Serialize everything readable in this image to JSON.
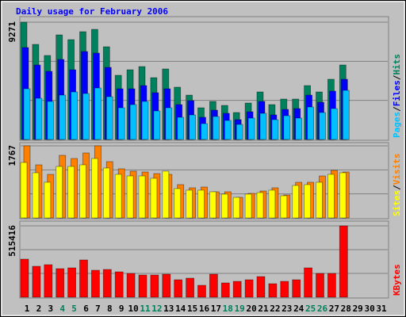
{
  "chart_data": [
    {
      "type": "bar",
      "title": "Daily usage for February 2006",
      "ylim": [
        0,
        9271
      ],
      "yticks": [
        9271
      ],
      "grid_divisions": 3,
      "series": [
        {
          "name": "Hits",
          "color": "#00805c",
          "values": [
            9271,
            7517,
            6640,
            8268,
            7893,
            8519,
            8707,
            7329,
            5074,
            5512,
            5763,
            4886,
            5575,
            4134,
            3508,
            2506,
            3007,
            2694,
            2130,
            2881,
            3758,
            2756,
            3195,
            3195,
            4260,
            3758,
            4761,
            5888,
            null,
            null,
            null
          ]
        },
        {
          "name": "Files",
          "color": "#0000ff",
          "values": [
            7266,
            5888,
            5387,
            6327,
            5512,
            6953,
            6828,
            5700,
            4009,
            4009,
            4260,
            3696,
            4009,
            2756,
            3069,
            1754,
            2318,
            2067,
            1566,
            2192,
            3007,
            1942,
            2380,
            2443,
            3508,
            2944,
            3821,
            4761,
            null,
            null,
            null
          ]
        },
        {
          "name": "Pages",
          "color": "#00c0ff",
          "values": [
            4009,
            3257,
            3007,
            3508,
            3758,
            3633,
            4072,
            3383,
            2506,
            2756,
            3007,
            2255,
            2506,
            1754,
            1942,
            1253,
            1817,
            1503,
            1190,
            1691,
            2067,
            1566,
            1879,
            1691,
            2568,
            2130,
            2443,
            3884,
            null,
            null,
            null
          ]
        }
      ]
    },
    {
      "type": "bar",
      "ylim": [
        0,
        1767
      ],
      "yticks": [
        1767
      ],
      "grid_divisions": 3,
      "series": [
        {
          "name": "Visits",
          "color": "#ff8000",
          "values": [
            1767,
            1301,
            1068,
            1534,
            1456,
            1592,
            1767,
            1379,
            1204,
            1146,
            1126,
            1087,
            1068,
            816,
            738,
            757,
            641,
            641,
            505,
            602,
            660,
            738,
            563,
            874,
            874,
            1029,
            1165,
            1126,
            null,
            null,
            null
          ]
        },
        {
          "name": "Sites",
          "color": "#ffff00",
          "values": [
            1359,
            1107,
            874,
            1262,
            1262,
            1301,
            1456,
            1223,
            1068,
            1029,
            1029,
            971,
            1146,
            719,
            680,
            680,
            641,
            583,
            505,
            583,
            621,
            680,
            544,
            796,
            816,
            874,
            1068,
            1107,
            null,
            null,
            null
          ]
        }
      ]
    },
    {
      "type": "bar",
      "ylim": [
        0,
        515416
      ],
      "yticks": [
        515416
      ],
      "grid_divisions": 3,
      "categories": [
        "1",
        "2",
        "3",
        "4",
        "5",
        "6",
        "7",
        "8",
        "9",
        "10",
        "11",
        "12",
        "13",
        "14",
        "15",
        "16",
        "17",
        "18",
        "19",
        "20",
        "21",
        "22",
        "23",
        "24",
        "25",
        "26",
        "27",
        "28",
        "29",
        "30",
        "31"
      ],
      "label_colors": [
        "#000000",
        "#000000",
        "#000000",
        "#00805c",
        "#00805c",
        "#000000",
        "#000000",
        "#000000",
        "#000000",
        "#000000",
        "#00805c",
        "#00805c",
        "#000000",
        "#000000",
        "#000000",
        "#000000",
        "#000000",
        "#00805c",
        "#00805c",
        "#000000",
        "#000000",
        "#000000",
        "#000000",
        "#000000",
        "#00805c",
        "#00805c",
        "#000000",
        "#000000",
        "#000000",
        "#000000",
        "#000000"
      ],
      "series": [
        {
          "name": "KBytes",
          "color": "#ff0000",
          "values": [
            274896,
            223353,
            234807,
            206172,
            211899,
            269169,
            194718,
            200445,
            183264,
            171810,
            160356,
            160356,
            166083,
            125994,
            137448,
            85905,
            166083,
            103086,
            114540,
            125994,
            148902,
            97359,
            114540,
            125994,
            211899,
            171810,
            171810,
            515416,
            null,
            null,
            null
          ]
        }
      ]
    }
  ]
}
